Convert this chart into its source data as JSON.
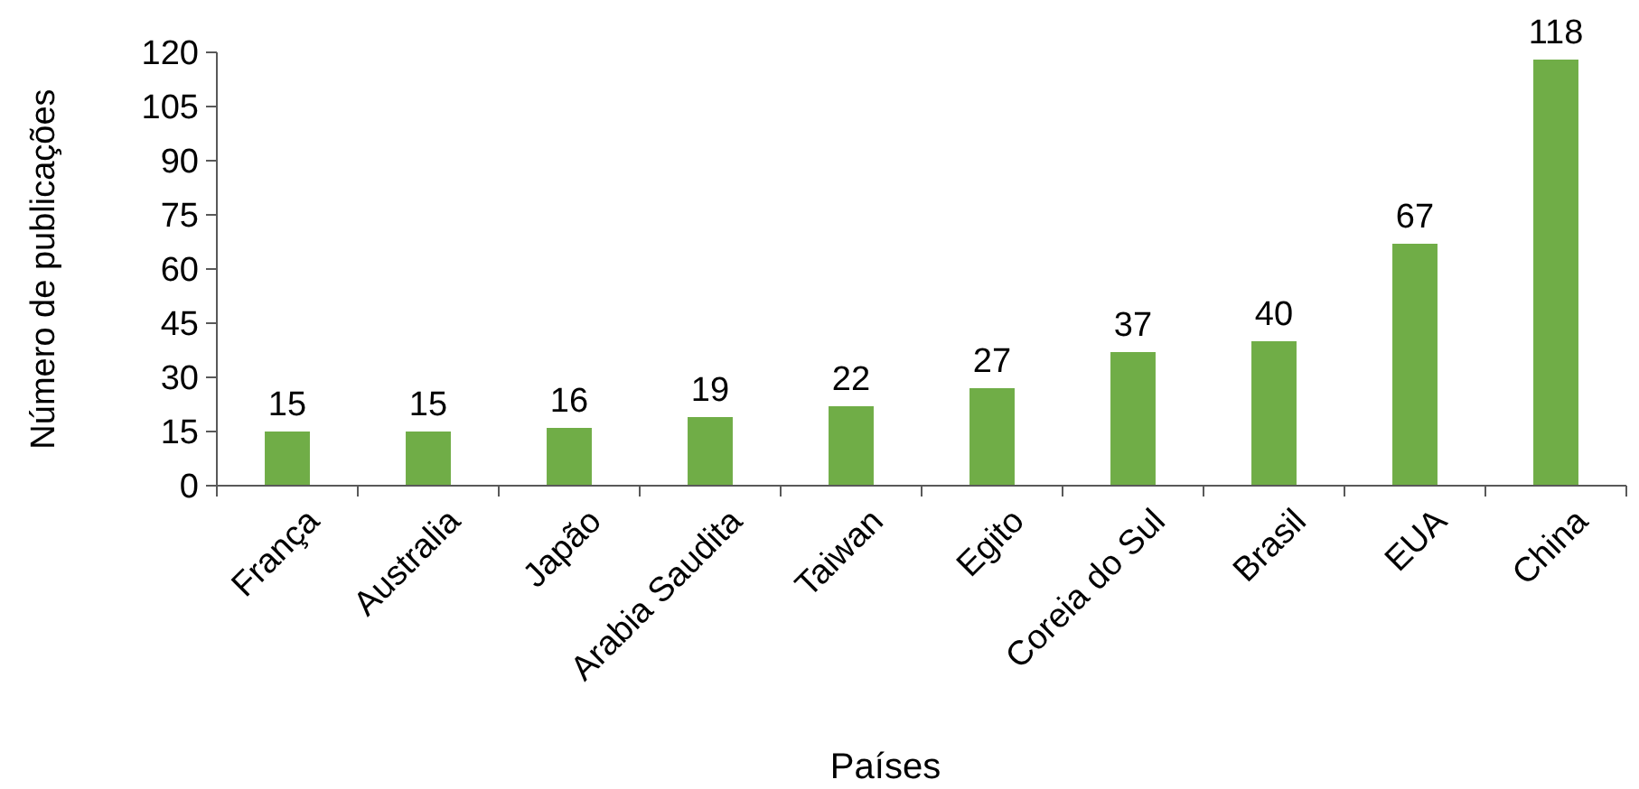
{
  "chart_data": {
    "type": "bar",
    "xlabel": "Países",
    "ylabel": "Número de publicações",
    "categories": [
      "França",
      "Australia",
      "Japão",
      "Arabia Saudita",
      "Taiwan",
      "Egito",
      "Coreia do Sul",
      "Brasil",
      "EUA",
      "China"
    ],
    "values": [
      15,
      15,
      16,
      19,
      22,
      27,
      37,
      40,
      67,
      118
    ],
    "color": "#70ad47",
    "ylim": [
      0,
      120
    ],
    "yticks": [
      0,
      15,
      30,
      45,
      60,
      75,
      90,
      105,
      120
    ],
    "data_labels": true
  }
}
